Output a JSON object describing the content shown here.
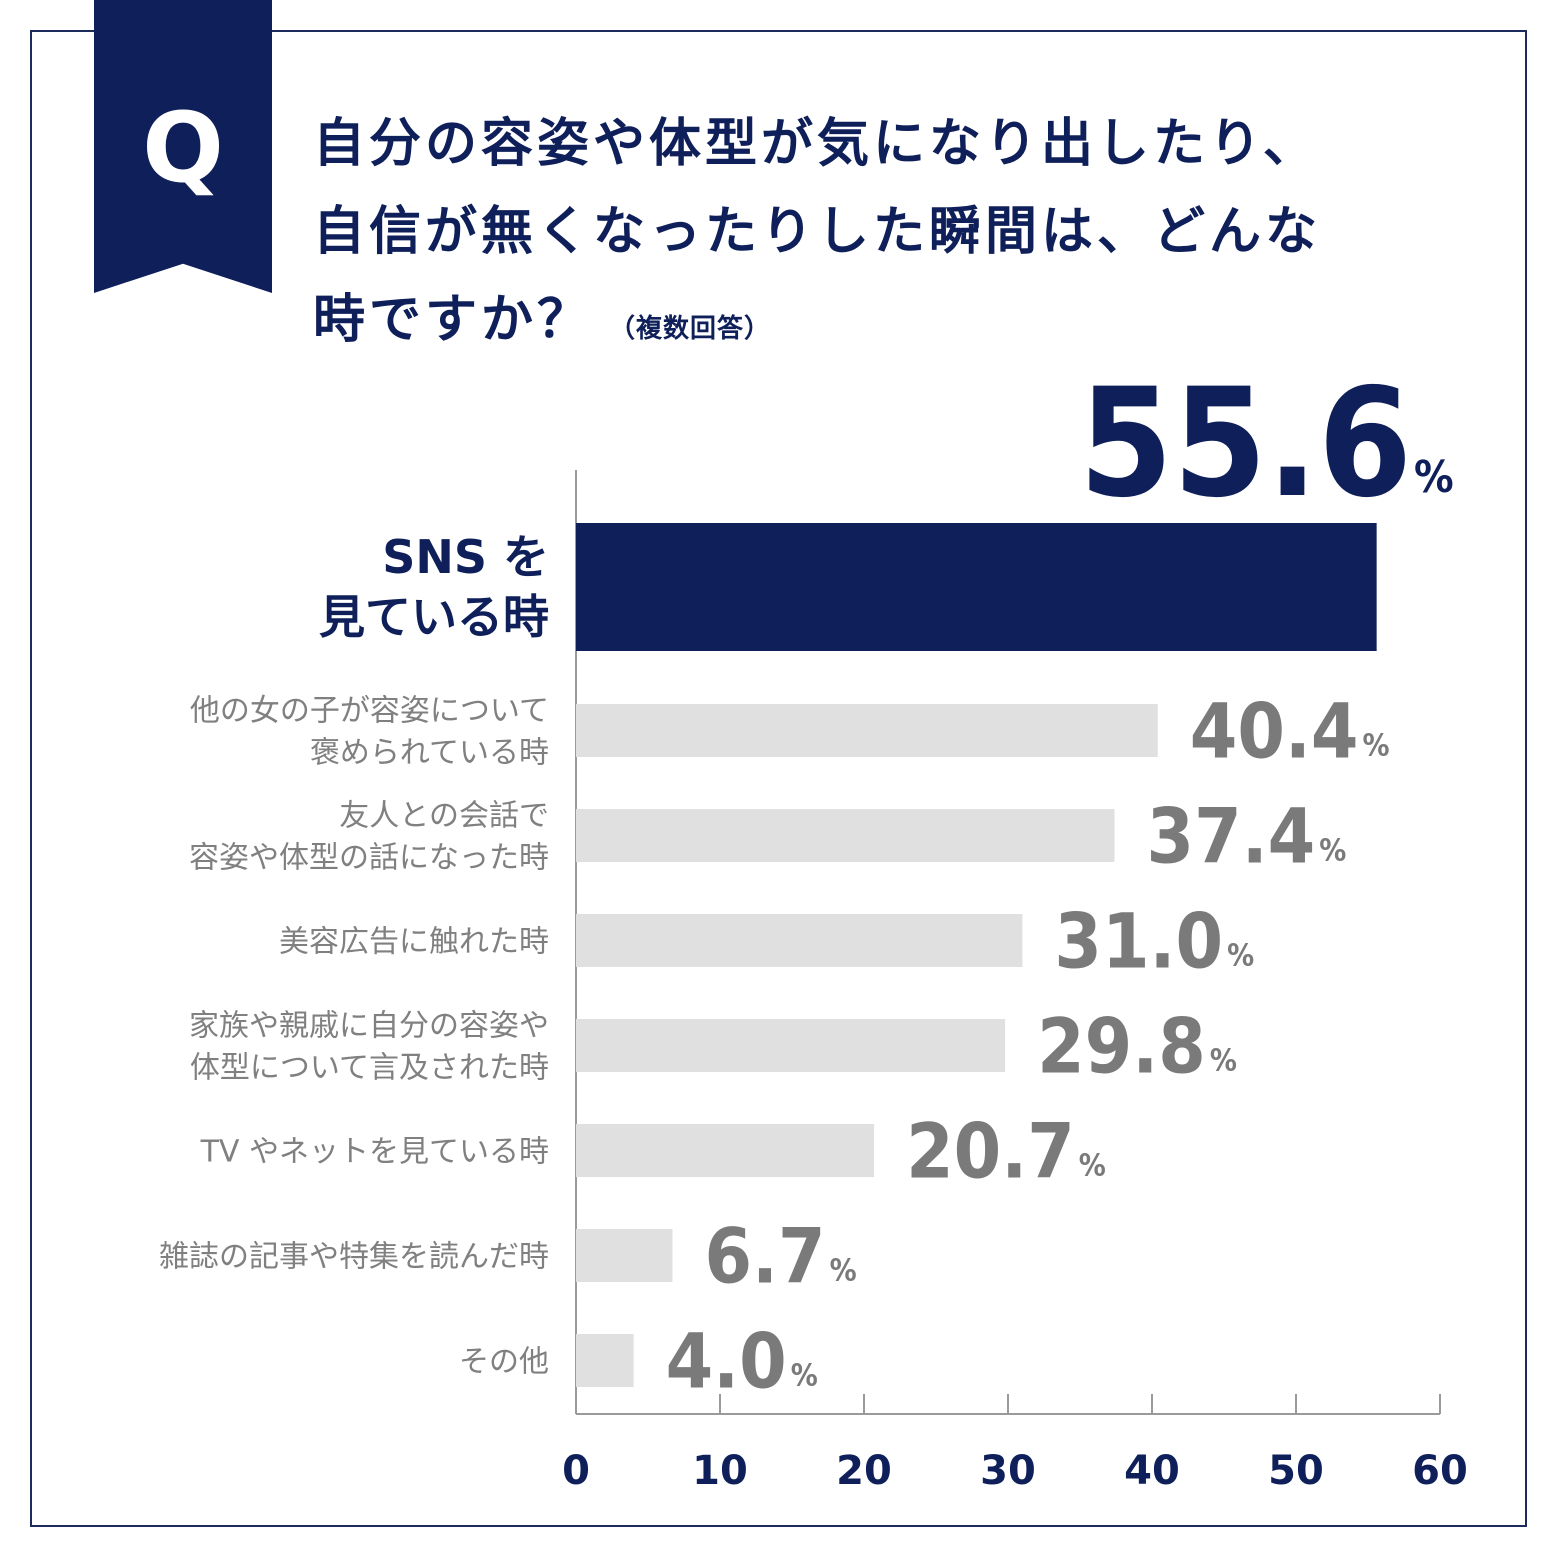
{
  "badge": {
    "letter": "Q"
  },
  "question": {
    "lines": [
      "自分の容姿や体型が気になり出したり、",
      "自信が無くなったりした瞬間は、どんな",
      "時ですか？"
    ],
    "note": "（複数回答）"
  },
  "colors": {
    "highlight": "#0e1f5a",
    "bar": "#e0e0e0",
    "value_text": "#7a7a7a",
    "axis": "#9a9a9a",
    "frame": "#1c2a5c"
  },
  "chart_data": {
    "type": "bar",
    "orientation": "horizontal",
    "categories": [
      "SNS を\n見ている時",
      "他の女の子が容姿について\n褒められている時",
      "友人との会話で\n容姿や体型の話になった時",
      "美容広告に触れた時",
      "家族や親戚に自分の容姿や\n体型について言及された時",
      "TV やネットを見ている時",
      "雑誌の記事や特集を読んだ時",
      "その他"
    ],
    "values": [
      55.6,
      40.4,
      37.4,
      31.0,
      29.8,
      20.7,
      6.7,
      4.0
    ],
    "value_labels": [
      "55.6",
      "40.4",
      "37.4",
      "31.0",
      "29.8",
      "20.7",
      "6.7",
      "4.0"
    ],
    "unit": "%",
    "highlight_index": 0,
    "xlim": [
      0,
      60
    ],
    "xticks": [
      0,
      10,
      20,
      30,
      40,
      50,
      60
    ],
    "title": "",
    "xlabel": "",
    "ylabel": ""
  }
}
